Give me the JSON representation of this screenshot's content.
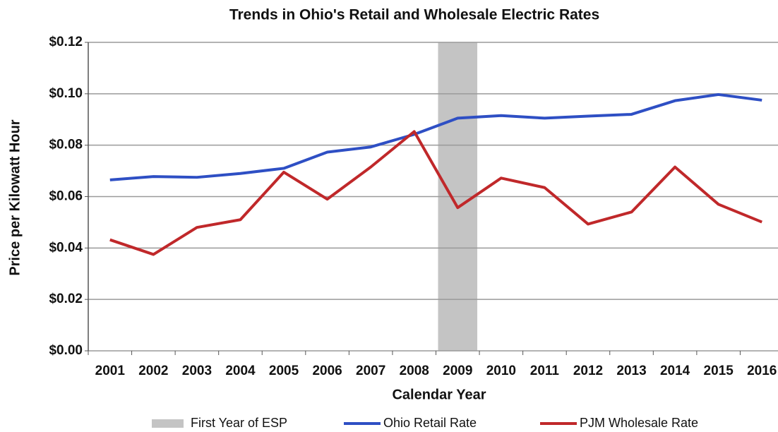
{
  "chart_data": {
    "type": "line",
    "title": "Trends in Ohio's Retail and Wholesale Electric Rates",
    "x_label": "Calendar Year",
    "y_label": "Price per Kilowatt Hour",
    "categories": [
      "2001",
      "2002",
      "2003",
      "2004",
      "2005",
      "2006",
      "2007",
      "2008",
      "2009",
      "2010",
      "2011",
      "2012",
      "2013",
      "2014",
      "2015",
      "2016"
    ],
    "series": [
      {
        "name": "Ohio Retail Rate",
        "color": "#2e4fc4",
        "values": [
          0.0665,
          0.0678,
          0.0675,
          0.069,
          0.071,
          0.0773,
          0.0793,
          0.0842,
          0.0905,
          0.0915,
          0.0905,
          0.0913,
          0.092,
          0.0973,
          0.0997,
          0.0975
        ]
      },
      {
        "name": "PJM Wholesale Rate",
        "color": "#c0282a",
        "values": [
          0.0432,
          0.0375,
          0.048,
          0.051,
          0.0695,
          0.059,
          0.0715,
          0.0853,
          0.0557,
          0.0672,
          0.0635,
          0.0493,
          0.054,
          0.0715,
          0.057,
          0.0501
        ]
      }
    ],
    "highlight": {
      "name": "First Year of ESP",
      "category": "2009",
      "color": "#c4c4c4"
    },
    "ylim": [
      0,
      0.12
    ],
    "yticks": [
      {
        "value": 0,
        "label": "$0.00"
      },
      {
        "value": 0.02,
        "label": "$0.02"
      },
      {
        "value": 0.04,
        "label": "$0.04"
      },
      {
        "value": 0.06,
        "label": "$0.06"
      },
      {
        "value": 0.08,
        "label": "$0.08"
      },
      {
        "value": 0.1,
        "label": "$0.10"
      },
      {
        "value": 0.12,
        "label": "$0.12"
      }
    ],
    "grid": true
  }
}
